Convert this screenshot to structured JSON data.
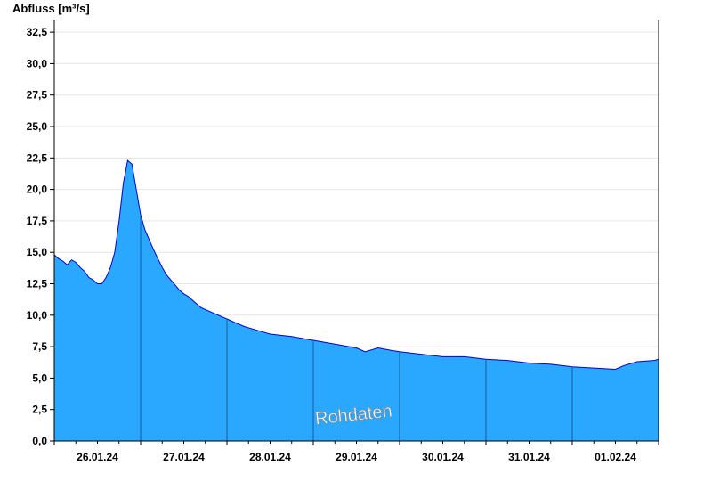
{
  "chart_data": {
    "type": "area",
    "title": "",
    "ylabel": "Abfluss [m³/s]",
    "xlabel": "",
    "ylim": [
      0,
      33.5
    ],
    "yticks": [
      0,
      2.5,
      5,
      7.5,
      10,
      12.5,
      15,
      17.5,
      20,
      22.5,
      25,
      27.5,
      30,
      32.5
    ],
    "ytick_labels": [
      "0,0",
      "2,5",
      "5,0",
      "7,5",
      "10,0",
      "12,5",
      "15,0",
      "17,5",
      "20,0",
      "22,5",
      "25,0",
      "27,5",
      "30,0",
      "32,5"
    ],
    "xlim_days": [
      0,
      7
    ],
    "day_labels": [
      "26.01.24",
      "27.01.24",
      "28.01.24",
      "29.01.24",
      "30.01.24",
      "31.01.24",
      "01.02.24"
    ],
    "grid": true,
    "fill_color": "#2aa8ff",
    "line_color": "#0000cc",
    "watermark": "Rohdaten",
    "series": [
      {
        "x": [
          0,
          0.05,
          0.1,
          0.15,
          0.2,
          0.25,
          0.3,
          0.35,
          0.4,
          0.45,
          0.5,
          0.55,
          0.6,
          0.65,
          0.7,
          0.75,
          0.8,
          0.85,
          0.9,
          0.95,
          1.0,
          1.05,
          1.1,
          1.15,
          1.2,
          1.25,
          1.3,
          1.35,
          1.4,
          1.45,
          1.5,
          1.55,
          1.6,
          1.65,
          1.7,
          1.8,
          1.9,
          2.0,
          2.1,
          2.2,
          2.3,
          2.4,
          2.5,
          2.75,
          3.0,
          3.25,
          3.5,
          3.6,
          3.75,
          3.9,
          4.0,
          4.25,
          4.5,
          4.75,
          5.0,
          5.25,
          5.5,
          5.75,
          6.0,
          6.25,
          6.5,
          6.6,
          6.75,
          6.95,
          7.0
        ],
        "y": [
          14.8,
          14.5,
          14.3,
          14.0,
          14.4,
          14.2,
          13.8,
          13.5,
          13.0,
          12.8,
          12.5,
          12.5,
          13.0,
          13.8,
          15.0,
          17.5,
          20.5,
          22.3,
          22.0,
          20.0,
          18.0,
          16.8,
          16.0,
          15.2,
          14.5,
          13.8,
          13.2,
          12.8,
          12.4,
          12.0,
          11.7,
          11.5,
          11.2,
          10.9,
          10.6,
          10.3,
          10.0,
          9.7,
          9.4,
          9.1,
          8.9,
          8.7,
          8.5,
          8.3,
          8.0,
          7.7,
          7.4,
          7.1,
          7.4,
          7.2,
          7.1,
          6.9,
          6.7,
          6.7,
          6.5,
          6.4,
          6.2,
          6.1,
          5.9,
          5.8,
          5.7,
          6.0,
          6.3,
          6.4,
          6.5
        ]
      }
    ]
  }
}
